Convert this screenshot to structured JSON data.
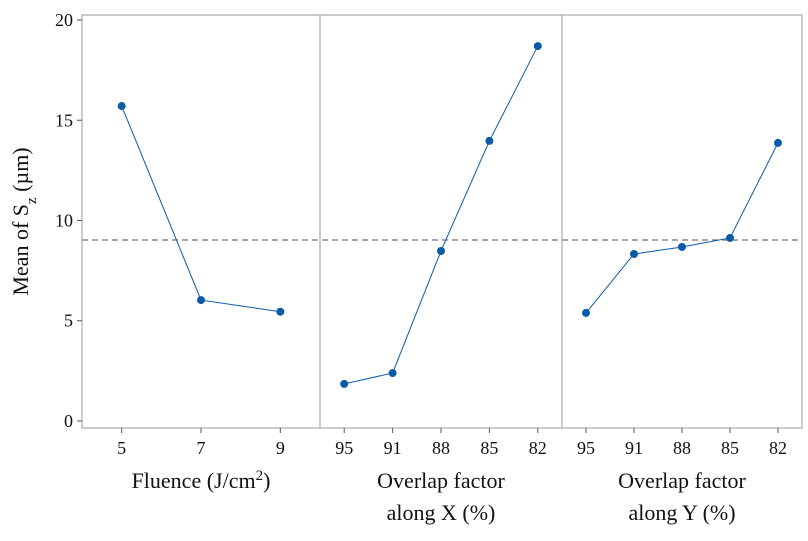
{
  "chart_data": {
    "type": "line",
    "color": "#0a5aa8",
    "ref_color": "#8c8c8c",
    "ylabel": [
      {
        "text": "Mean of S"
      },
      {
        "text": "z",
        "script": "sub"
      },
      {
        "text": " (µm)"
      }
    ],
    "ylim": [
      -0.35,
      20.25
    ],
    "yticks": [
      0,
      5,
      10,
      15,
      20
    ],
    "reference_line": 9.03,
    "panels": [
      {
        "categories": [
          "5",
          "7",
          "9"
        ],
        "values": [
          15.71,
          6.03,
          5.45
        ],
        "xlabel": [
          [
            {
              "text": "Fluence (J/cm"
            },
            {
              "text": "2",
              "script": "super"
            },
            {
              "text": ")"
            }
          ]
        ]
      },
      {
        "categories": [
          "95",
          "91",
          "88",
          "85",
          "82"
        ],
        "values": [
          1.85,
          2.39,
          8.48,
          13.97,
          18.7
        ],
        "xlabel": [
          [
            {
              "text": "Overlap factor"
            }
          ],
          [
            {
              "text": "along X (%)"
            }
          ]
        ]
      },
      {
        "categories": [
          "95",
          "91",
          "88",
          "85",
          "82"
        ],
        "values": [
          5.39,
          8.33,
          8.68,
          9.13,
          13.87
        ],
        "xlabel": [
          [
            {
              "text": "Overlap factor"
            }
          ],
          [
            {
              "text": "along Y (%)"
            }
          ]
        ]
      }
    ]
  }
}
